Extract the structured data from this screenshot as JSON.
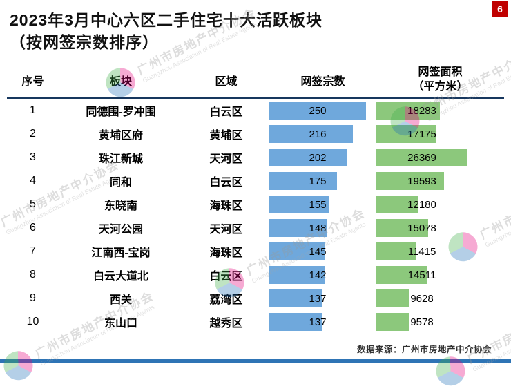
{
  "page": {
    "badge": "6",
    "title_line1": "2023年3月中心六区二手住宅十大活跃板块",
    "title_line2": "（按网签宗数排序）",
    "footer": "数据来源：广州市房地产中介协会"
  },
  "table": {
    "headers": {
      "rank": "序号",
      "area": "板块",
      "district": "区域",
      "deals": "网签宗数",
      "sqm_line1": "网签面积",
      "sqm_line2": "（平方米）"
    },
    "rows": [
      {
        "rank": "1",
        "area": "同德围-罗冲围",
        "district": "白云区",
        "deals": "250",
        "sqm": "18283"
      },
      {
        "rank": "2",
        "area": "黄埔区府",
        "district": "黄埔区",
        "deals": "216",
        "sqm": "17175"
      },
      {
        "rank": "3",
        "area": "珠江新城",
        "district": "天河区",
        "deals": "202",
        "sqm": "26369"
      },
      {
        "rank": "4",
        "area": "同和",
        "district": "白云区",
        "deals": "175",
        "sqm": "19593"
      },
      {
        "rank": "5",
        "area": "东晓南",
        "district": "海珠区",
        "deals": "155",
        "sqm": "12180"
      },
      {
        "rank": "6",
        "area": "天河公园",
        "district": "天河区",
        "deals": "148",
        "sqm": "15078"
      },
      {
        "rank": "7",
        "area": "江南西-宝岗",
        "district": "海珠区",
        "deals": "145",
        "sqm": "11415"
      },
      {
        "rank": "8",
        "area": "白云大道北",
        "district": "白云区",
        "deals": "142",
        "sqm": "14511"
      },
      {
        "rank": "9",
        "area": "西关",
        "district": "荔湾区",
        "deals": "137",
        "sqm": "9628"
      },
      {
        "rank": "10",
        "area": "东山口",
        "district": "越秀区",
        "deals": "137",
        "sqm": "9578"
      }
    ]
  },
  "watermark": {
    "cn": "广州市房地产中介协会",
    "en": "Guangzhou Association of Real Estate Agents"
  },
  "colors": {
    "deals_bar": "#6fa8dc",
    "sqm_bar": "#8cc87c",
    "badge_bg": "#c00000",
    "header_rule": "#17375e",
    "bottom_bar": "#2e74b5",
    "logo_green": "#3fae49",
    "logo_magenta": "#e5007d",
    "logo_blue": "#1e6fb8"
  },
  "chart_data": {
    "type": "bar",
    "title": "2023年3月中心六区二手住宅十大活跃板块（按网签宗数排序）",
    "categories": [
      "同德围-罗冲围",
      "黄埔区府",
      "珠江新城",
      "同和",
      "东晓南",
      "天河公园",
      "江南西-宝岗",
      "白云大道北",
      "西关",
      "东山口"
    ],
    "districts": [
      "白云区",
      "黄埔区",
      "天河区",
      "白云区",
      "海珠区",
      "天河区",
      "海珠区",
      "白云区",
      "荔湾区",
      "越秀区"
    ],
    "series": [
      {
        "name": "网签宗数",
        "values": [
          250,
          216,
          202,
          175,
          155,
          148,
          145,
          142,
          137,
          137
        ]
      },
      {
        "name": "网签面积（平方米）",
        "values": [
          18283,
          17175,
          26369,
          19593,
          12180,
          15078,
          11415,
          14511,
          9628,
          9578
        ]
      }
    ],
    "orientation": "horizontal",
    "data_labels": true,
    "legend_position": "none",
    "source_note": "数据来源：广州市房地产中介协会"
  }
}
